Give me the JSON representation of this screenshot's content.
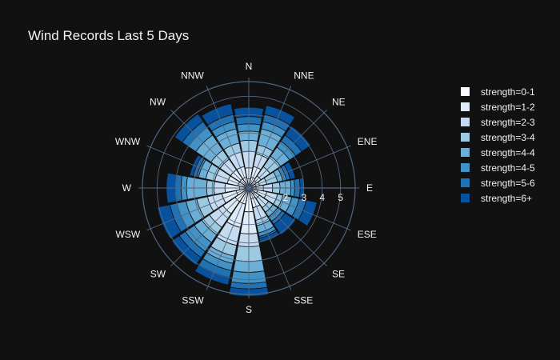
{
  "chart_data": {
    "type": "barpolar",
    "title": "Wind Records Last 5 Days",
    "directions": [
      "N",
      "NNE",
      "NE",
      "ENE",
      "E",
      "ESE",
      "SE",
      "SSE",
      "S",
      "SSW",
      "SW",
      "WSW",
      "W",
      "WNW",
      "NW",
      "NNW"
    ],
    "radial_ticks": [
      2,
      3,
      4,
      5
    ],
    "radial_range": [
      0,
      5.8
    ],
    "background_color": "#111111",
    "grid_color": "#506784",
    "legend_placement": "right",
    "series": [
      {
        "name": "strength=0-1",
        "color": "#f7fbff",
        "values": [
          0.5,
          0.6,
          0.5,
          0.4,
          0.4,
          0.5,
          0.4,
          0.6,
          1.3,
          0.9,
          0.9,
          0.7,
          0.5,
          0.6,
          0.6,
          0.6
        ]
      },
      {
        "name": "strength=1-2",
        "color": "#deebf7",
        "values": [
          0.6,
          0.6,
          0.3,
          0.2,
          0.4,
          0.5,
          0.3,
          0.5,
          1.2,
          1.3,
          0.8,
          0.8,
          0.8,
          0.6,
          0.6,
          0.6
        ]
      },
      {
        "name": "strength=2-3",
        "color": "#c6dbef",
        "values": [
          0.9,
          0.7,
          0.6,
          0.4,
          0.5,
          0.6,
          0.6,
          0.7,
          0.7,
          1.0,
          0.9,
          0.8,
          0.6,
          0.7,
          0.7,
          0.8
        ]
      },
      {
        "name": "strength=3-4",
        "color": "#9ecae1",
        "values": [
          0.6,
          0.5,
          0.7,
          0.6,
          0.4,
          0.3,
          0.3,
          0.3,
          0.8,
          0.6,
          0.5,
          0.6,
          0.4,
          0.5,
          0.6,
          0.5
        ]
      },
      {
        "name": "strength=4-4",
        "color": "#6baed6",
        "values": [
          0.5,
          0.9,
          0.6,
          0.3,
          0.6,
          0.5,
          0.3,
          0.4,
          0.6,
          0.4,
          0.5,
          0.6,
          1.1,
          0.4,
          1.0,
          0.8
        ]
      },
      {
        "name": "strength=4-5",
        "color": "#4292c6",
        "values": [
          0.4,
          0.4,
          0.4,
          0.2,
          0.2,
          0.4,
          0.3,
          0.2,
          0.6,
          0.4,
          0.6,
          0.5,
          0.3,
          0.1,
          0.5,
          0.4
        ]
      },
      {
        "name": "strength=5-6",
        "color": "#2171b5",
        "values": [
          0.4,
          0.4,
          0.4,
          0.2,
          0.3,
          0.4,
          0.2,
          0.1,
          0.3,
          0.4,
          0.4,
          0.4,
          0.3,
          0.2,
          0.4,
          0.4
        ]
      },
      {
        "name": "strength=6+",
        "color": "#08519c",
        "values": [
          0.5,
          0.5,
          0.6,
          0.3,
          0.2,
          0.6,
          0.7,
          0.2,
          0.4,
          0.4,
          0.5,
          0.7,
          0.5,
          0.2,
          0.5,
          0.6
        ]
      }
    ]
  }
}
